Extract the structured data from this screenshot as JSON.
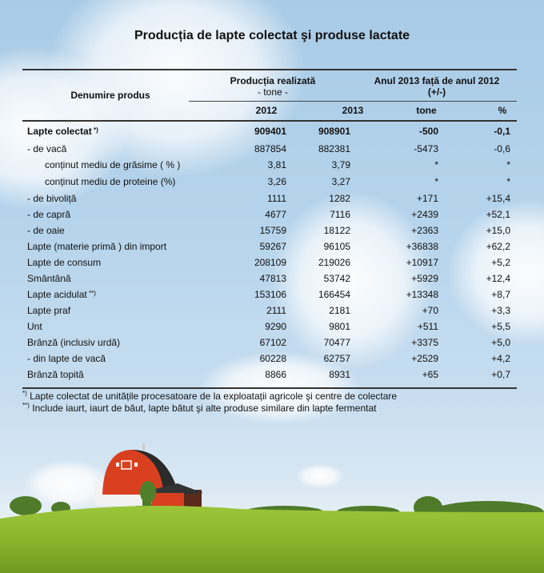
{
  "title": "Producția de lapte colectat şi produse lactate",
  "header": {
    "col_name": "Denumire produs",
    "group1_title": "Producția realizată",
    "group1_sub": "- tone -",
    "group2_title": "Anul 2013 față de anul 2012",
    "group2_sub": "(+/-)",
    "col_2012": "2012",
    "col_2013": "2013",
    "col_tone": "tone",
    "col_pct": "%"
  },
  "rows": [
    {
      "name": "Lapte colectat",
      "sup": "*)",
      "y2012": "909401",
      "y2013": "908901",
      "tone": "-500",
      "pct": "-0,1",
      "bold": true,
      "indent": 1
    },
    {
      "name": "- de vacă",
      "sup": "",
      "y2012": "887854",
      "y2013": "882381",
      "tone": "-5473",
      "pct": "-0,6",
      "bold": false,
      "indent": 1
    },
    {
      "name": "conținut mediu de grăsime ( % )",
      "sup": "",
      "y2012": "3,81",
      "y2013": "3,79",
      "tone": "*",
      "pct": "*",
      "bold": false,
      "indent": 2
    },
    {
      "name": "conținut mediu de proteine (%)",
      "sup": "",
      "y2012": "3,26",
      "y2013": "3,27",
      "tone": "*",
      "pct": "*",
      "bold": false,
      "indent": 2
    },
    {
      "name": "- de bivoliță",
      "sup": "",
      "y2012": "1111",
      "y2013": "1282",
      "tone": "+171",
      "pct": "+15,4",
      "bold": false,
      "indent": 1
    },
    {
      "name": "- de capră",
      "sup": "",
      "y2012": "4677",
      "y2013": "7116",
      "tone": "+2439",
      "pct": "+52,1",
      "bold": false,
      "indent": 1
    },
    {
      "name": "- de oaie",
      "sup": "",
      "y2012": "15759",
      "y2013": "18122",
      "tone": "+2363",
      "pct": "+15,0",
      "bold": false,
      "indent": 1
    },
    {
      "name": "Lapte (materie primă ) din import",
      "sup": "",
      "y2012": "59267",
      "y2013": "96105",
      "tone": "+36838",
      "pct": "+62,2",
      "bold": false,
      "indent": 1
    },
    {
      "name": "Lapte de consum",
      "sup": "",
      "y2012": "208109",
      "y2013": "219026",
      "tone": "+10917",
      "pct": "+5,2",
      "bold": false,
      "indent": 1
    },
    {
      "name": "Smântână",
      "sup": "",
      "y2012": "47813",
      "y2013": "53742",
      "tone": "+5929",
      "pct": "+12,4",
      "bold": false,
      "indent": 1
    },
    {
      "name": "Lapte acidulat",
      "sup": "**)",
      "y2012": "153106",
      "y2013": "166454",
      "tone": "+13348",
      "pct": "+8,7",
      "bold": false,
      "indent": 1
    },
    {
      "name": "Lapte praf",
      "sup": "",
      "y2012": "2111",
      "y2013": "2181",
      "tone": "+70",
      "pct": "+3,3",
      "bold": false,
      "indent": 1
    },
    {
      "name": "Unt",
      "sup": "",
      "y2012": "9290",
      "y2013": "9801",
      "tone": "+511",
      "pct": "+5,5",
      "bold": false,
      "indent": 1
    },
    {
      "name": "Brânză (inclusiv urdă)",
      "sup": "",
      "y2012": "67102",
      "y2013": "70477",
      "tone": "+3375",
      "pct": "+5,0",
      "bold": false,
      "indent": 1
    },
    {
      "name": "- din lapte de vacă",
      "sup": "",
      "y2012": "60228",
      "y2013": "62757",
      "tone": "+2529",
      "pct": "+4,2",
      "bold": false,
      "indent": 1
    },
    {
      "name": "Brânză topită",
      "sup": "",
      "y2012": "8866",
      "y2013": "8931",
      "tone": "+65",
      "pct": "+0,7",
      "bold": false,
      "indent": 1
    }
  ],
  "footnotes": [
    {
      "mark": "*)",
      "text": "Lapte colectat de unitățile procesatoare de la exploatații agricole şi centre de colectare"
    },
    {
      "mark": "**)",
      "text": "Include iaurt, iaurt de băut, lapte bătut şi alte produse similare din lapte fermentat"
    }
  ],
  "colors": {
    "sky": "#a9cbe6",
    "grass": "#8fba2c",
    "barn_red": "#d9401f",
    "barn_roof": "#2a2a2a"
  }
}
